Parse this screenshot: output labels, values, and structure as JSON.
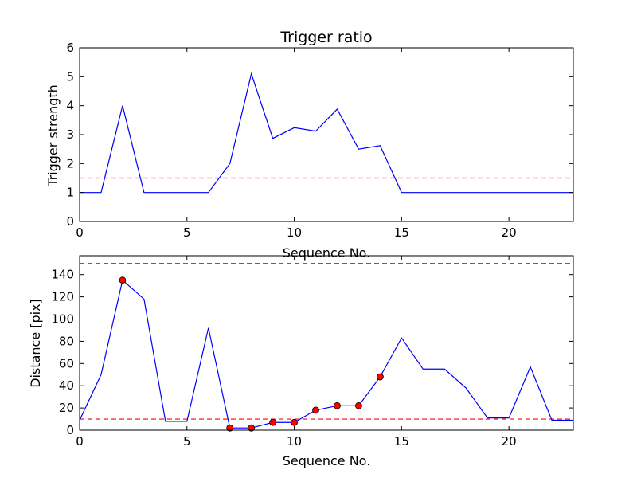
{
  "colors": {
    "series": "#0000ff",
    "threshold": "#ff0000",
    "marker_fill": "#ff0000",
    "marker_edge": "#000000"
  },
  "chart_data": [
    {
      "type": "line",
      "title": "Trigger ratio",
      "xlabel": "Sequence No.",
      "ylabel": "Trigger strength",
      "xlim": [
        0,
        23
      ],
      "ylim": [
        0,
        6
      ],
      "xticks": [
        0,
        5,
        10,
        15,
        20
      ],
      "yticks": [
        0,
        1,
        2,
        3,
        4,
        5,
        6
      ],
      "series": [
        {
          "x": [
            0,
            1,
            2,
            3,
            4,
            5,
            6,
            7,
            8,
            9,
            10,
            11,
            12,
            13,
            14,
            15,
            16,
            17,
            18,
            19,
            20,
            21,
            22,
            23
          ],
          "y": [
            1.0,
            1.0,
            4.0,
            1.0,
            1.0,
            1.0,
            1.0,
            2.0,
            5.1,
            2.87,
            3.24,
            3.12,
            3.88,
            2.5,
            2.62,
            1.0,
            1.0,
            1.0,
            1.0,
            1.0,
            1.0,
            1.0,
            1.0,
            1.0
          ]
        }
      ],
      "hlines": [
        1.5
      ],
      "grid": false
    },
    {
      "type": "line",
      "title": "",
      "xlabel": "Sequence No.",
      "ylabel": "Distance [pix]",
      "xlim": [
        0,
        23
      ],
      "ylim": [
        0,
        157
      ],
      "xticks": [
        0,
        5,
        10,
        15,
        20
      ],
      "yticks": [
        0,
        20,
        40,
        60,
        80,
        100,
        120,
        140
      ],
      "series": [
        {
          "x": [
            0,
            1,
            2,
            3,
            4,
            5,
            6,
            7,
            8,
            9,
            10,
            11,
            12,
            13,
            14,
            15,
            16,
            17,
            18,
            19,
            20,
            21,
            22,
            23
          ],
          "y": [
            9,
            50,
            135,
            118,
            8,
            8,
            92,
            2,
            2,
            7,
            7,
            18,
            22,
            22,
            48,
            83,
            55,
            55,
            38,
            11,
            11,
            57,
            9,
            9
          ]
        }
      ],
      "markers": {
        "x": [
          2,
          7,
          8,
          9,
          10,
          11,
          12,
          13,
          14
        ],
        "y": [
          135,
          2,
          2,
          7,
          7,
          18,
          22,
          22,
          48
        ]
      },
      "hlines": [
        10,
        150
      ],
      "grid": false
    }
  ]
}
